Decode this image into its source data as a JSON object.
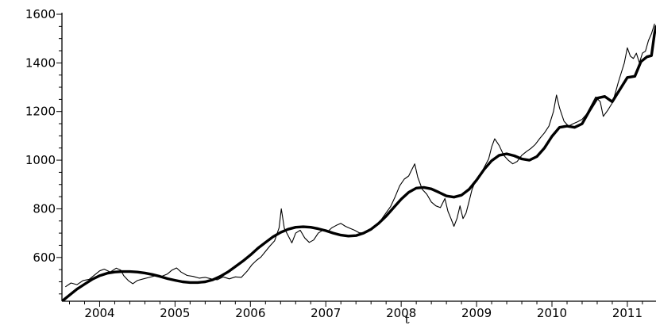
{
  "chart_data": {
    "type": "line",
    "title": "",
    "xlabel": "t",
    "ylabel": "",
    "xlim": [
      2003.5,
      2011.38
    ],
    "ylim": [
      420,
      1600
    ],
    "grid": false,
    "legend": "none",
    "x_ticks": [
      2004,
      2005,
      2006,
      2007,
      2008,
      2009,
      2010,
      2011
    ],
    "y_ticks": [
      600,
      800,
      1000,
      1200,
      1400,
      1600
    ],
    "series": [
      {
        "style": "thin",
        "color": "#000000",
        "points": [
          [
            2003.55,
            480
          ],
          [
            2003.62,
            495
          ],
          [
            2003.7,
            488
          ],
          [
            2003.78,
            505
          ],
          [
            2003.86,
            510
          ],
          [
            2003.94,
            530
          ],
          [
            2004.0,
            545
          ],
          [
            2004.06,
            552
          ],
          [
            2004.14,
            540
          ],
          [
            2004.22,
            556
          ],
          [
            2004.28,
            548
          ],
          [
            2004.32,
            525
          ],
          [
            2004.38,
            505
          ],
          [
            2004.44,
            492
          ],
          [
            2004.5,
            505
          ],
          [
            2004.58,
            512
          ],
          [
            2004.66,
            518
          ],
          [
            2004.74,
            525
          ],
          [
            2004.82,
            522
          ],
          [
            2004.9,
            532
          ],
          [
            2004.96,
            548
          ],
          [
            2005.02,
            557
          ],
          [
            2005.08,
            540
          ],
          [
            2005.16,
            526
          ],
          [
            2005.24,
            522
          ],
          [
            2005.32,
            515
          ],
          [
            2005.4,
            518
          ],
          [
            2005.48,
            512
          ],
          [
            2005.56,
            508
          ],
          [
            2005.64,
            520
          ],
          [
            2005.72,
            512
          ],
          [
            2005.8,
            520
          ],
          [
            2005.88,
            518
          ],
          [
            2005.96,
            545
          ],
          [
            2006.02,
            570
          ],
          [
            2006.08,
            588
          ],
          [
            2006.14,
            602
          ],
          [
            2006.2,
            625
          ],
          [
            2006.26,
            648
          ],
          [
            2006.32,
            668
          ],
          [
            2006.38,
            722
          ],
          [
            2006.41,
            800
          ],
          [
            2006.45,
            720
          ],
          [
            2006.5,
            690
          ],
          [
            2006.55,
            660
          ],
          [
            2006.6,
            700
          ],
          [
            2006.66,
            712
          ],
          [
            2006.72,
            680
          ],
          [
            2006.78,
            662
          ],
          [
            2006.84,
            672
          ],
          [
            2006.9,
            700
          ],
          [
            2006.96,
            712
          ],
          [
            2007.02,
            705
          ],
          [
            2007.08,
            722
          ],
          [
            2007.14,
            732
          ],
          [
            2007.2,
            740
          ],
          [
            2007.26,
            728
          ],
          [
            2007.32,
            720
          ],
          [
            2007.38,
            712
          ],
          [
            2007.44,
            702
          ],
          [
            2007.5,
            700
          ],
          [
            2007.56,
            710
          ],
          [
            2007.62,
            720
          ],
          [
            2007.7,
            740
          ],
          [
            2007.78,
            775
          ],
          [
            2007.86,
            810
          ],
          [
            2007.92,
            850
          ],
          [
            2007.98,
            895
          ],
          [
            2008.04,
            922
          ],
          [
            2008.1,
            935
          ],
          [
            2008.14,
            960
          ],
          [
            2008.18,
            985
          ],
          [
            2008.22,
            930
          ],
          [
            2008.28,
            880
          ],
          [
            2008.34,
            860
          ],
          [
            2008.4,
            828
          ],
          [
            2008.46,
            812
          ],
          [
            2008.52,
            805
          ],
          [
            2008.58,
            842
          ],
          [
            2008.62,
            790
          ],
          [
            2008.66,
            760
          ],
          [
            2008.7,
            728
          ],
          [
            2008.74,
            760
          ],
          [
            2008.78,
            812
          ],
          [
            2008.82,
            760
          ],
          [
            2008.86,
            782
          ],
          [
            2008.9,
            830
          ],
          [
            2008.94,
            880
          ],
          [
            2008.98,
            910
          ],
          [
            2009.04,
            935
          ],
          [
            2009.1,
            970
          ],
          [
            2009.16,
            1005
          ],
          [
            2009.2,
            1055
          ],
          [
            2009.24,
            1088
          ],
          [
            2009.3,
            1060
          ],
          [
            2009.36,
            1020
          ],
          [
            2009.42,
            1000
          ],
          [
            2009.48,
            985
          ],
          [
            2009.54,
            995
          ],
          [
            2009.6,
            1020
          ],
          [
            2009.66,
            1035
          ],
          [
            2009.72,
            1048
          ],
          [
            2009.78,
            1065
          ],
          [
            2009.84,
            1090
          ],
          [
            2009.9,
            1112
          ],
          [
            2009.96,
            1140
          ],
          [
            2010.02,
            1200
          ],
          [
            2010.06,
            1268
          ],
          [
            2010.1,
            1215
          ],
          [
            2010.16,
            1160
          ],
          [
            2010.22,
            1140
          ],
          [
            2010.28,
            1150
          ],
          [
            2010.34,
            1158
          ],
          [
            2010.4,
            1168
          ],
          [
            2010.46,
            1190
          ],
          [
            2010.52,
            1225
          ],
          [
            2010.58,
            1260
          ],
          [
            2010.64,
            1240
          ],
          [
            2010.68,
            1180
          ],
          [
            2010.74,
            1205
          ],
          [
            2010.8,
            1235
          ],
          [
            2010.84,
            1275
          ],
          [
            2010.88,
            1320
          ],
          [
            2010.92,
            1360
          ],
          [
            2010.96,
            1400
          ],
          [
            2011.0,
            1462
          ],
          [
            2011.04,
            1428
          ],
          [
            2011.08,
            1418
          ],
          [
            2011.12,
            1440
          ],
          [
            2011.16,
            1400
          ],
          [
            2011.2,
            1440
          ],
          [
            2011.24,
            1448
          ],
          [
            2011.28,
            1492
          ],
          [
            2011.32,
            1520
          ],
          [
            2011.36,
            1560
          ]
        ]
      },
      {
        "style": "thick",
        "color": "#000000",
        "points": [
          [
            2003.52,
            425
          ],
          [
            2003.6,
            445
          ],
          [
            2003.7,
            470
          ],
          [
            2003.8,
            490
          ],
          [
            2003.9,
            510
          ],
          [
            2004.0,
            525
          ],
          [
            2004.1,
            535
          ],
          [
            2004.2,
            540
          ],
          [
            2004.3,
            542
          ],
          [
            2004.4,
            542
          ],
          [
            2004.5,
            540
          ],
          [
            2004.6,
            536
          ],
          [
            2004.7,
            530
          ],
          [
            2004.8,
            522
          ],
          [
            2004.9,
            513
          ],
          [
            2005.0,
            506
          ],
          [
            2005.1,
            500
          ],
          [
            2005.2,
            497
          ],
          [
            2005.3,
            497
          ],
          [
            2005.4,
            500
          ],
          [
            2005.5,
            508
          ],
          [
            2005.6,
            522
          ],
          [
            2005.7,
            540
          ],
          [
            2005.8,
            562
          ],
          [
            2005.9,
            585
          ],
          [
            2006.0,
            610
          ],
          [
            2006.1,
            638
          ],
          [
            2006.2,
            662
          ],
          [
            2006.3,
            685
          ],
          [
            2006.4,
            703
          ],
          [
            2006.5,
            716
          ],
          [
            2006.6,
            724
          ],
          [
            2006.7,
            726
          ],
          [
            2006.8,
            724
          ],
          [
            2006.9,
            718
          ],
          [
            2007.0,
            710
          ],
          [
            2007.1,
            700
          ],
          [
            2007.2,
            692
          ],
          [
            2007.3,
            688
          ],
          [
            2007.4,
            690
          ],
          [
            2007.5,
            700
          ],
          [
            2007.6,
            716
          ],
          [
            2007.7,
            740
          ],
          [
            2007.8,
            770
          ],
          [
            2007.9,
            805
          ],
          [
            2008.0,
            840
          ],
          [
            2008.1,
            868
          ],
          [
            2008.2,
            885
          ],
          [
            2008.3,
            888
          ],
          [
            2008.4,
            882
          ],
          [
            2008.5,
            868
          ],
          [
            2008.6,
            853
          ],
          [
            2008.7,
            848
          ],
          [
            2008.8,
            856
          ],
          [
            2008.9,
            880
          ],
          [
            2009.0,
            918
          ],
          [
            2009.1,
            962
          ],
          [
            2009.2,
            998
          ],
          [
            2009.3,
            1020
          ],
          [
            2009.4,
            1026
          ],
          [
            2009.5,
            1018
          ],
          [
            2009.6,
            1005
          ],
          [
            2009.7,
            1000
          ],
          [
            2009.8,
            1015
          ],
          [
            2009.9,
            1050
          ],
          [
            2010.0,
            1098
          ],
          [
            2010.1,
            1135
          ],
          [
            2010.2,
            1140
          ],
          [
            2010.3,
            1135
          ],
          [
            2010.4,
            1150
          ],
          [
            2010.5,
            1205
          ],
          [
            2010.6,
            1255
          ],
          [
            2010.7,
            1262
          ],
          [
            2010.8,
            1240
          ],
          [
            2010.9,
            1290
          ],
          [
            2011.0,
            1340
          ],
          [
            2011.1,
            1345
          ],
          [
            2011.18,
            1405
          ],
          [
            2011.26,
            1425
          ],
          [
            2011.32,
            1430
          ],
          [
            2011.36,
            1520
          ],
          [
            2011.38,
            1550
          ]
        ]
      }
    ]
  }
}
